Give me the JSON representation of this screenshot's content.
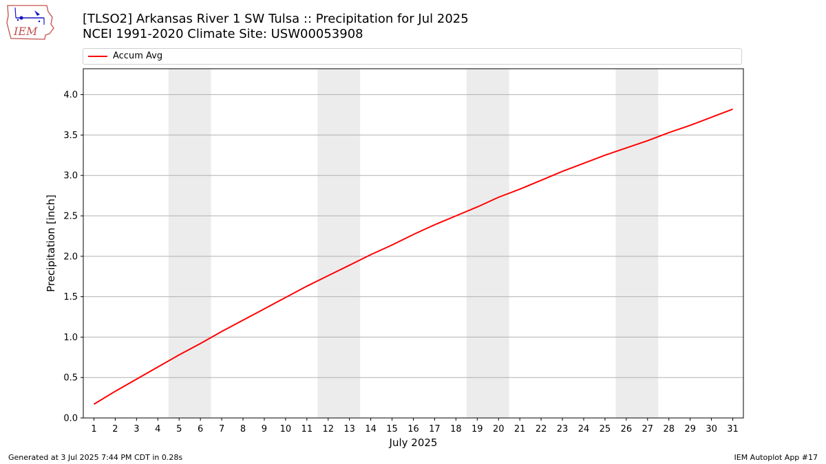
{
  "header": {
    "title_line1": "[TLSO2] Arkansas River 1 SW Tulsa :: Precipitation for Jul 2025",
    "title_line2": "NCEI 1991-2020 Climate Site: USW00053908"
  },
  "logo": {
    "text": "IEM",
    "icon": "iem-iowa-logo"
  },
  "legend": {
    "items": [
      {
        "label": "Accum Avg",
        "color": "#ff0000"
      }
    ]
  },
  "footer": {
    "left": "Generated at 3 Jul 2025 7:44 PM CDT in 0.28s",
    "right": "IEM Autoplot App #17"
  },
  "chart_data": {
    "type": "line",
    "xlabel": "July 2025",
    "ylabel": "Precipitation [inch]",
    "x": [
      1,
      2,
      3,
      4,
      5,
      6,
      7,
      8,
      9,
      10,
      11,
      12,
      13,
      14,
      15,
      16,
      17,
      18,
      19,
      20,
      21,
      22,
      23,
      24,
      25,
      26,
      27,
      28,
      29,
      30,
      31
    ],
    "xlim": [
      0.5,
      31.5
    ],
    "ylim": [
      0,
      4.32
    ],
    "yticks": [
      0.0,
      0.5,
      1.0,
      1.5,
      2.0,
      2.5,
      3.0,
      3.5,
      4.0
    ],
    "grid": "horizontal",
    "legend_position": "top",
    "series": [
      {
        "name": "Accum Avg",
        "color": "#ff0000",
        "values": [
          0.17,
          0.33,
          0.48,
          0.63,
          0.78,
          0.92,
          1.07,
          1.21,
          1.35,
          1.49,
          1.63,
          1.76,
          1.89,
          2.02,
          2.14,
          2.27,
          2.39,
          2.5,
          2.61,
          2.73,
          2.83,
          2.94,
          3.05,
          3.15,
          3.25,
          3.34,
          3.43,
          3.53,
          3.62,
          3.72,
          3.82
        ]
      }
    ],
    "shaded_weekends": [
      [
        5,
        6
      ],
      [
        12,
        13
      ],
      [
        19,
        20
      ],
      [
        26,
        27
      ]
    ],
    "shade_color": "#ececec"
  }
}
